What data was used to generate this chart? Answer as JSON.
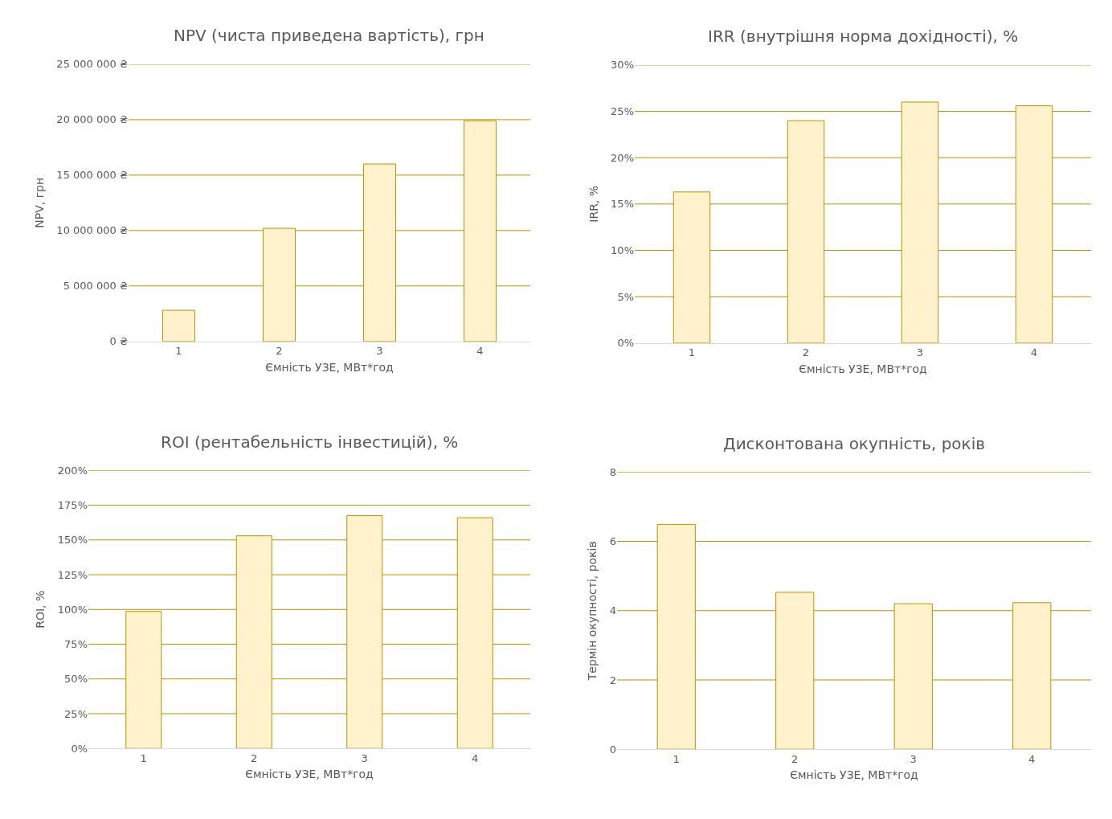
{
  "chart_data": [
    {
      "type": "bar",
      "title": "NPV (чиста приведена вартість), грн",
      "xlabel": "Ємність УЗЕ, МВт*год",
      "ylabel": "NPV, грн",
      "categories": [
        "1",
        "2",
        "3",
        "4"
      ],
      "values": [
        2800000,
        10200000,
        16000000,
        19900000
      ],
      "color": "#fff2cc",
      "ylim": [
        0,
        25000000
      ],
      "yticks": [
        {
          "value": 0,
          "label": "0 ₴"
        },
        {
          "value": 5000000,
          "label": "5 000 000 ₴"
        },
        {
          "value": 10000000,
          "label": "10 000 000 ₴"
        },
        {
          "value": 15000000,
          "label": "15 000 000 ₴"
        },
        {
          "value": 20000000,
          "label": "20 000 000 ₴"
        },
        {
          "value": 25000000,
          "label": "25 000 000 ₴"
        }
      ],
      "grid": "y"
    },
    {
      "type": "bar",
      "title": "IRR (внутрішня норма дохідності), %",
      "xlabel": "Ємність УЗЕ, МВт*год",
      "ylabel": "IRR, %",
      "categories": [
        "1",
        "2",
        "3",
        "4"
      ],
      "values": [
        16.3,
        24.0,
        26.0,
        25.6
      ],
      "color": "#fff2cc",
      "ylim": [
        0,
        30
      ],
      "yticks": [
        {
          "value": 0,
          "label": "0%"
        },
        {
          "value": 5,
          "label": "5%"
        },
        {
          "value": 10,
          "label": "10%"
        },
        {
          "value": 15,
          "label": "15%"
        },
        {
          "value": 20,
          "label": "20%"
        },
        {
          "value": 25,
          "label": "25%"
        },
        {
          "value": 30,
          "label": "30%"
        }
      ],
      "grid": "y"
    },
    {
      "type": "bar",
      "title": "ROI (рентабельність інвестицій), %",
      "xlabel": "Ємність УЗЕ, МВт*год",
      "ylabel": "ROI, %",
      "categories": [
        "1",
        "2",
        "3",
        "4"
      ],
      "values": [
        98.6,
        153,
        167.5,
        166
      ],
      "color": "#fff2cc",
      "ylim": [
        0,
        200
      ],
      "yticks": [
        {
          "value": 0,
          "label": "0%"
        },
        {
          "value": 25,
          "label": "25%"
        },
        {
          "value": 50,
          "label": "50%"
        },
        {
          "value": 75,
          "label": "75%"
        },
        {
          "value": 100,
          "label": "100%"
        },
        {
          "value": 125,
          "label": "125%"
        },
        {
          "value": 150,
          "label": "150%"
        },
        {
          "value": 175,
          "label": "175%"
        },
        {
          "value": 200,
          "label": "200%"
        }
      ],
      "grid": "y"
    },
    {
      "type": "bar",
      "title": "Дисконтована окупність, років",
      "xlabel": "Ємність УЗЕ, МВт*год",
      "ylabel": "Термін окупності, років",
      "categories": [
        "1",
        "2",
        "3",
        "4"
      ],
      "values": [
        6.49,
        4.53,
        4.2,
        4.23
      ],
      "color": "#fff2cc",
      "ylim": [
        0,
        8
      ],
      "yticks": [
        0,
        2,
        4,
        6,
        8
      ],
      "grid": "y"
    }
  ]
}
